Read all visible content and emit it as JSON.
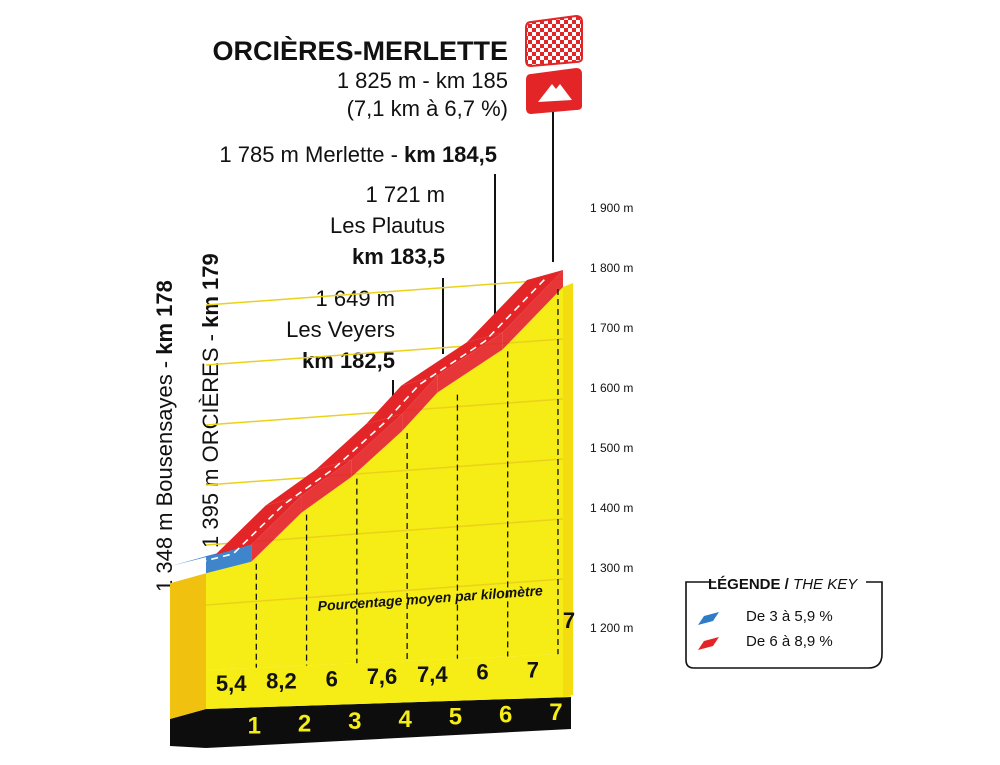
{
  "summit": {
    "name": "ORCIÈRES-MERLETTE",
    "line1": "1 825 m - km 185",
    "line2": "(7,1 km à 6,7 %)"
  },
  "waypoints": [
    {
      "text_plain": "1 785 m Merlette - ",
      "text_bold": "km 184,5"
    },
    {
      "alt": "1 721 m",
      "name": "Les Plautus",
      "km": "km 183,5"
    },
    {
      "alt": "1 649 m",
      "name": "Les Veyers",
      "km": "km 182,5"
    }
  ],
  "vertical_labels": [
    {
      "plain": "1 348 m Bousensayes - ",
      "bold": "km 178"
    },
    {
      "plain": "1 395 m ORCIÈRES - ",
      "bold": "km 179"
    }
  ],
  "gradient_caption": "Pourcentage moyen par kilomètre",
  "legend": {
    "title": "LÉGENDE",
    "title_en": "THE KEY",
    "items": [
      {
        "label": "De 3 à 5,9 %",
        "color": "#2e7bc8"
      },
      {
        "label": "De 6 à 8,9 %",
        "color": "#e42527"
      }
    ]
  },
  "colors": {
    "fill": "#f6ec16",
    "ground": "#0d0d0d",
    "climb_blue": "#2e7bc8",
    "climb_red": "#e42527"
  },
  "chart_data": {
    "type": "area",
    "title": "ORCIÈRES-MERLETTE",
    "x_unit": "km",
    "y_unit": "m",
    "ylim": [
      1150,
      1950
    ],
    "y_ticks": [
      {
        "value": 1200,
        "label": "1 200 m"
      },
      {
        "value": 1300,
        "label": "1 300 m"
      },
      {
        "value": 1400,
        "label": "1 400 m"
      },
      {
        "value": 1500,
        "label": "1 500 m"
      },
      {
        "value": 1600,
        "label": "1 600 m"
      },
      {
        "value": 1700,
        "label": "1 700 m"
      },
      {
        "value": 1800,
        "label": "1 800 m"
      },
      {
        "value": 1900,
        "label": "1 900 m"
      }
    ],
    "km_markers": [
      "1",
      "2",
      "3",
      "4",
      "5",
      "6",
      "7"
    ],
    "profile_km": [
      0,
      0.9,
      1.9,
      2.9,
      3.9,
      4.6,
      5.9,
      7.1
    ],
    "profile_alt": [
      1348,
      1367,
      1449,
      1509,
      1585,
      1649,
      1721,
      1825
    ],
    "segments": [
      {
        "km": "1",
        "gradient": "5,4",
        "class": "De 3 à 5,9 %"
      },
      {
        "km": "2",
        "gradient": "8,2",
        "class": "De 6 à 8,9 %"
      },
      {
        "km": "3",
        "gradient": "6",
        "class": "De 6 à 8,9 %"
      },
      {
        "km": "4",
        "gradient": "7,6",
        "class": "De 6 à 8,9 %"
      },
      {
        "km": "5",
        "gradient": "7,4",
        "class": "De 6 à 8,9 %"
      },
      {
        "km": "6",
        "gradient": "6",
        "class": "De 6 à 8,9 %"
      },
      {
        "km": "7",
        "gradient": "7",
        "class": "De 6 à 8,9 %"
      }
    ],
    "extra_gradient_label": "7"
  }
}
